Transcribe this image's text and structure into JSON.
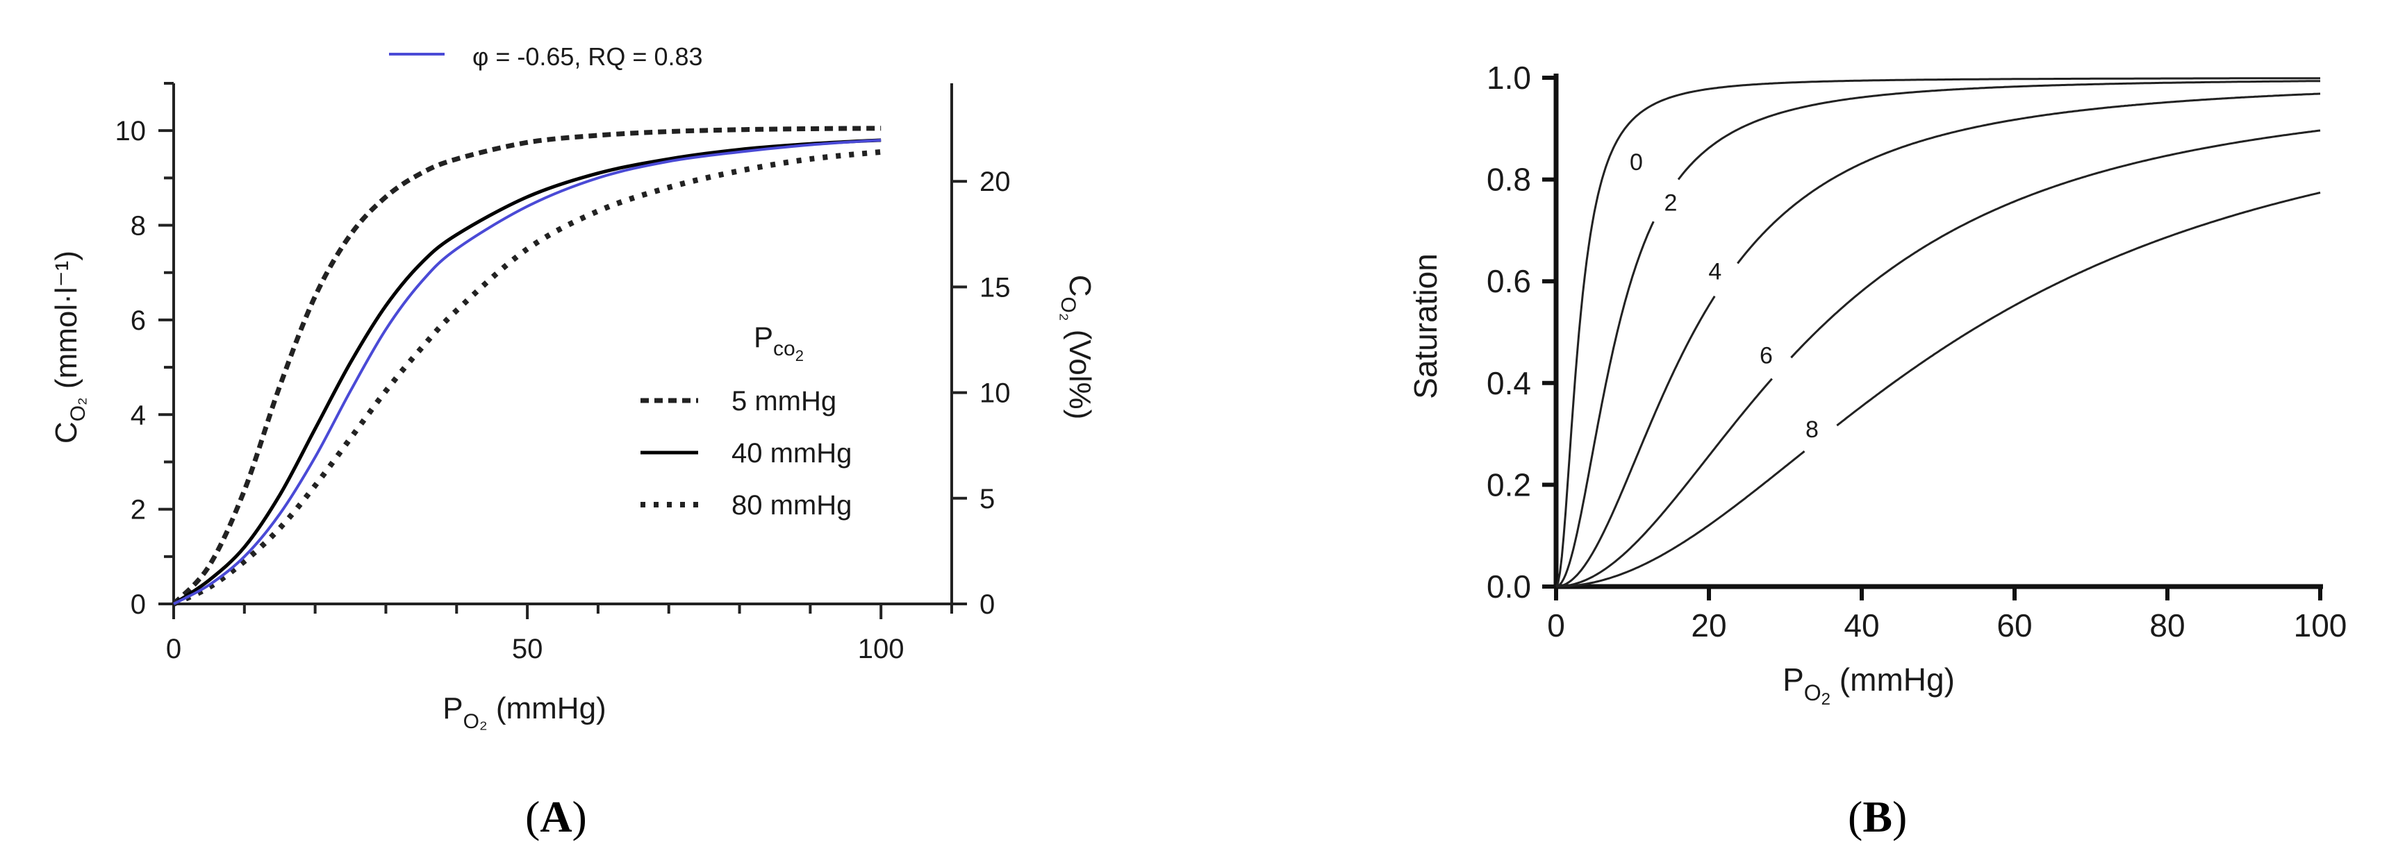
{
  "chart_data": [
    {
      "type": "line",
      "panel": "A",
      "panel_label": "A",
      "legend_top": {
        "label": "φ = -0.65, RQ = 0.83",
        "color": "#4a4ad6"
      },
      "legend_title": "P",
      "legend_title_sub": "co",
      "legend_title_sub2": "2",
      "xlabel": "P",
      "xlabel_sub": "O₂",
      "xlabel_unit": " (mmHg)",
      "ylabel_left": "C",
      "ylabel_left_sub": "O₂",
      "ylabel_left_unit": "  (mmol·l⁻¹)",
      "ylabel_right": "C",
      "ylabel_right_sub": "O₂",
      "ylabel_right_unit": " (Vol%)",
      "xlim": [
        0,
        110
      ],
      "ylim_left": [
        0,
        11
      ],
      "ylim_right": [
        0,
        24.64
      ],
      "x_ticks": [
        0,
        50,
        100
      ],
      "y_ticks_left": [
        0,
        2,
        4,
        6,
        8,
        10
      ],
      "y_ticks_right": [
        0,
        5,
        10,
        15,
        20
      ],
      "series": [
        {
          "name": "5 mmHg",
          "style": "dashed",
          "color": "#222222",
          "x": [
            0,
            5,
            10,
            15,
            20,
            25,
            30,
            35,
            40,
            50,
            60,
            70,
            80,
            90,
            100
          ],
          "y": [
            0,
            0.8,
            2.4,
            4.6,
            6.5,
            7.8,
            8.6,
            9.1,
            9.4,
            9.75,
            9.9,
            9.98,
            10.02,
            10.04,
            10.05
          ]
        },
        {
          "name": "40 mmHg",
          "style": "solid",
          "color": "#000000",
          "x": [
            0,
            5,
            10,
            15,
            20,
            25,
            30,
            35,
            40,
            50,
            60,
            70,
            80,
            90,
            100
          ],
          "y": [
            0,
            0.5,
            1.2,
            2.3,
            3.7,
            5.1,
            6.3,
            7.2,
            7.8,
            8.6,
            9.1,
            9.4,
            9.6,
            9.72,
            9.8
          ]
        },
        {
          "name": "80 mmHg",
          "style": "dotted",
          "color": "#222222",
          "x": [
            0,
            5,
            10,
            15,
            20,
            25,
            30,
            35,
            40,
            50,
            60,
            70,
            80,
            90,
            100
          ],
          "y": [
            0,
            0.35,
            0.9,
            1.6,
            2.5,
            3.5,
            4.5,
            5.4,
            6.2,
            7.5,
            8.3,
            8.8,
            9.15,
            9.4,
            9.55
          ]
        },
        {
          "name": "φ = -0.65, RQ = 0.83",
          "style": "solid",
          "color": "#4a4ad6",
          "x": [
            0,
            5,
            10,
            15,
            20,
            25,
            30,
            35,
            40,
            50,
            60,
            70,
            80,
            90,
            100
          ],
          "y": [
            0,
            0.4,
            1.0,
            1.9,
            3.1,
            4.5,
            5.8,
            6.8,
            7.5,
            8.4,
            9.0,
            9.35,
            9.55,
            9.7,
            9.8
          ]
        }
      ]
    },
    {
      "type": "line",
      "panel": "B",
      "panel_label": "B",
      "ylabel": "Saturation",
      "xlabel": "P",
      "xlabel_sub": "O",
      "xlabel_sub2": "2",
      "xlabel_unit": " (mmHg)",
      "xlim": [
        0,
        100
      ],
      "ylim": [
        0,
        1.0
      ],
      "x_ticks": [
        "0",
        "20",
        "40",
        "60",
        "80",
        "100"
      ],
      "y_ticks": [
        "0.0",
        "0.2",
        "0.4",
        "0.6",
        "0.8",
        "1.0"
      ],
      "series": [
        {
          "name": "0",
          "p50": 3.0,
          "n": 2.0,
          "label_x": 10.5,
          "label_y": 0.835
        },
        {
          "name": "2",
          "p50": 8.0,
          "n": 2.0,
          "label_x": 15.0,
          "label_y": 0.755
        },
        {
          "name": "4",
          "p50": 18.0,
          "n": 2.0,
          "label_x": 20.8,
          "label_y": 0.62
        },
        {
          "name": "6",
          "p50": 34.0,
          "n": 2.0,
          "label_x": 27.5,
          "label_y": 0.455
        },
        {
          "name": "8",
          "p50": 54.0,
          "n": 2.0,
          "label_x": 33.5,
          "label_y": 0.31
        }
      ]
    }
  ]
}
